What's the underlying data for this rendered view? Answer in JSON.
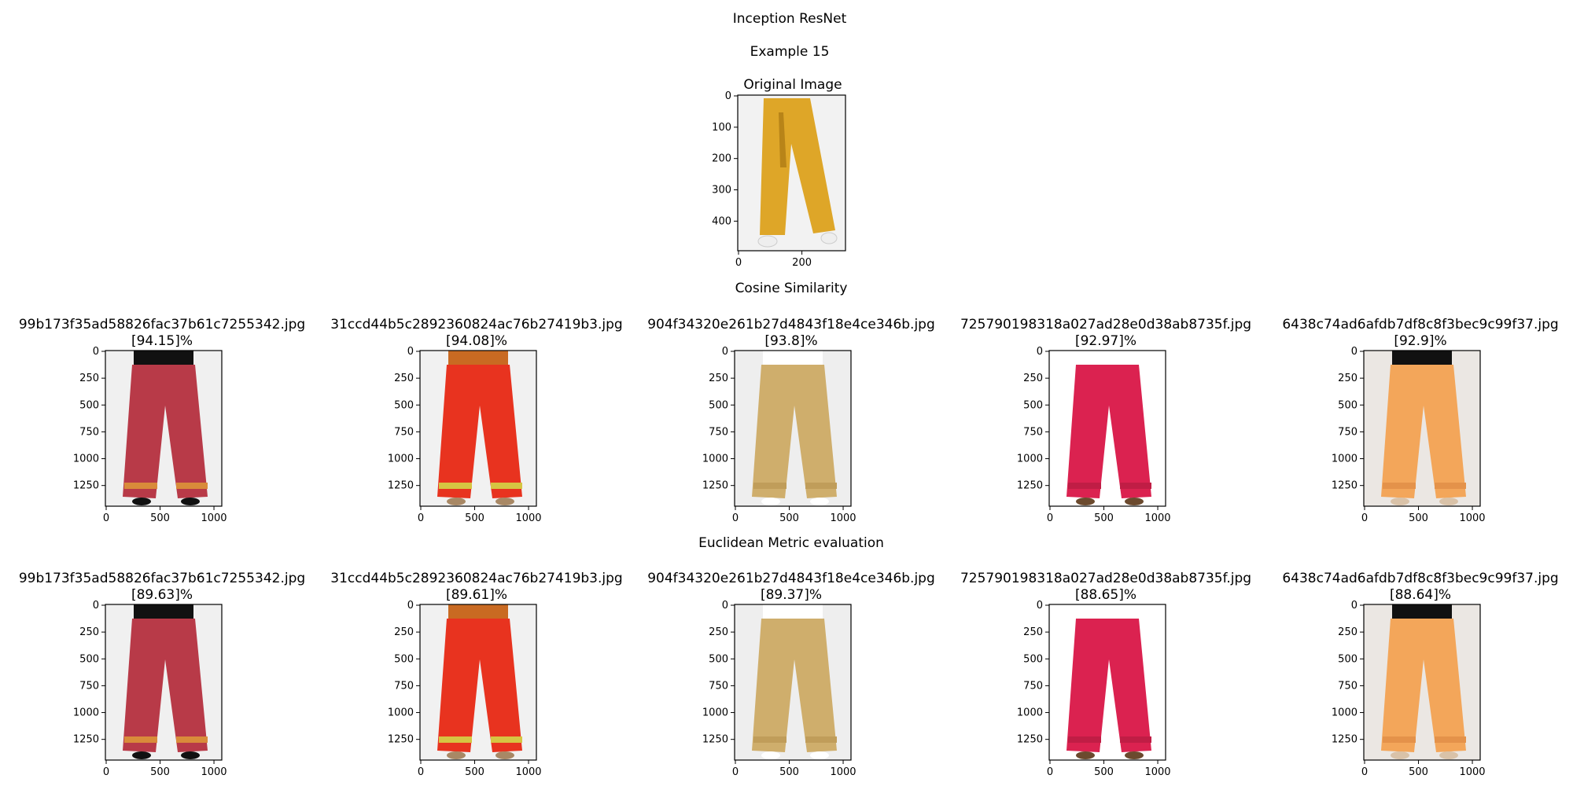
{
  "figure": {
    "title": "Inception ResNet",
    "subtitle": "Example 15"
  },
  "original": {
    "title": "Original Image",
    "x_ticks": [
      "0",
      "200"
    ],
    "y_ticks": [
      "0",
      "100",
      "200",
      "300",
      "400"
    ],
    "garment_color": "#dea628",
    "background_color": "#f2f2f2",
    "shoe_color": "#eeeeee"
  },
  "sections": [
    {
      "label": "Cosine Similarity",
      "results": [
        {
          "filename": "99b173f35ad58826fac37b61c7255342.jpg",
          "score": "[94.15]%",
          "garment_color": "#b83a48",
          "accent_color": "#d98b3a",
          "top_color": "#111111",
          "background_color": "#f0f0f0",
          "shoe_color": "#111111"
        },
        {
          "filename": "31ccd44b5c2892360824ac76b27419b3.jpg",
          "score": "[94.08]%",
          "garment_color": "#e8331f",
          "accent_color": "#d6c542",
          "top_color": "#c96a22",
          "background_color": "#f1f1f1",
          "shoe_color": "#a88865"
        },
        {
          "filename": "904f34320e261b27d4843f18e4ce346b.jpg",
          "score": "[93.8]%",
          "garment_color": "#cfae6c",
          "accent_color": "#c09d5a",
          "top_color": "#ffffff",
          "background_color": "#eeeeee",
          "shoe_color": "#ffffff"
        },
        {
          "filename": "725790198318a027ad28e0d38ab8735f.jpg",
          "score": "[92.97]%",
          "garment_color": "#db2250",
          "accent_color": "#c01d45",
          "top_color": "#ffffff",
          "background_color": "#ffffff",
          "shoe_color": "#6b4a2e"
        },
        {
          "filename": "6438c74ad6afdb7df8c8f3bec9c99f37.jpg",
          "score": "[92.9]%",
          "garment_color": "#f3a65a",
          "accent_color": "#e4924a",
          "top_color": "#111111",
          "background_color": "#ebe7e3",
          "shoe_color": "#d9c2a8"
        }
      ]
    },
    {
      "label": "Euclidean Metric evaluation",
      "results": [
        {
          "filename": "99b173f35ad58826fac37b61c7255342.jpg",
          "score": "[89.63]%",
          "garment_color": "#b83a48",
          "accent_color": "#d98b3a",
          "top_color": "#111111",
          "background_color": "#f0f0f0",
          "shoe_color": "#111111"
        },
        {
          "filename": "31ccd44b5c2892360824ac76b27419b3.jpg",
          "score": "[89.61]%",
          "garment_color": "#e8331f",
          "accent_color": "#d6c542",
          "top_color": "#c96a22",
          "background_color": "#f1f1f1",
          "shoe_color": "#a88865"
        },
        {
          "filename": "904f34320e261b27d4843f18e4ce346b.jpg",
          "score": "[89.37]%",
          "garment_color": "#cfae6c",
          "accent_color": "#c09d5a",
          "top_color": "#ffffff",
          "background_color": "#eeeeee",
          "shoe_color": "#ffffff"
        },
        {
          "filename": "725790198318a027ad28e0d38ab8735f.jpg",
          "score": "[88.65]%",
          "garment_color": "#db2250",
          "accent_color": "#c01d45",
          "top_color": "#ffffff",
          "background_color": "#ffffff",
          "shoe_color": "#6b4a2e"
        },
        {
          "filename": "6438c74ad6afdb7df8c8f3bec9c99f37.jpg",
          "score": "[88.64]%",
          "garment_color": "#f3a65a",
          "accent_color": "#e4924a",
          "top_color": "#111111",
          "background_color": "#ebe7e3",
          "shoe_color": "#d9c2a8"
        }
      ]
    }
  ],
  "result_x_ticks": [
    "0",
    "500",
    "1000"
  ],
  "result_y_ticks": [
    "0",
    "250",
    "500",
    "750",
    "1000",
    "1250"
  ]
}
